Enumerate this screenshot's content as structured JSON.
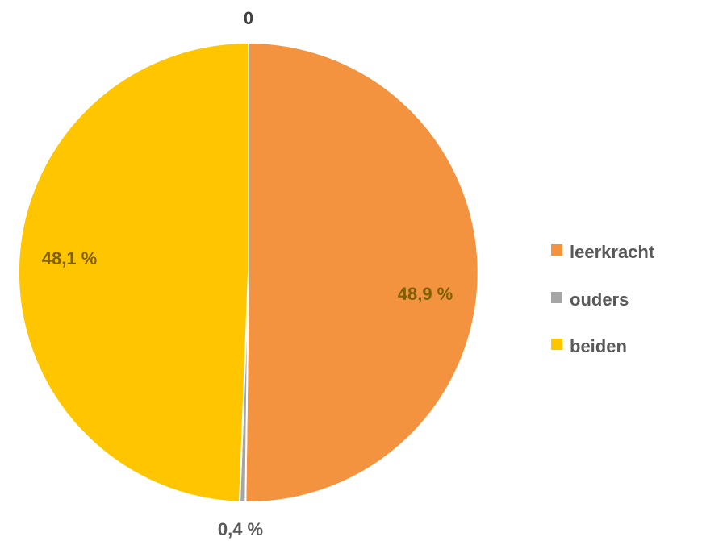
{
  "chart_data": {
    "type": "pie",
    "categories": [
      "leerkracht",
      "ouders",
      "beiden"
    ],
    "values": [
      48.9,
      0.4,
      48.1
    ],
    "labels": [
      "48,9 %",
      "0,4 %",
      "48,1 %"
    ],
    "top_label": "0",
    "colors": {
      "leerkracht": "#F39340",
      "ouders": "#A5A5A5",
      "beiden": "#FFC600"
    },
    "label_colors": {
      "leerkracht": "#7F6000",
      "ouders": "#595959",
      "beiden": "#7F6000",
      "top": "#404040"
    },
    "legend_position": "right"
  }
}
